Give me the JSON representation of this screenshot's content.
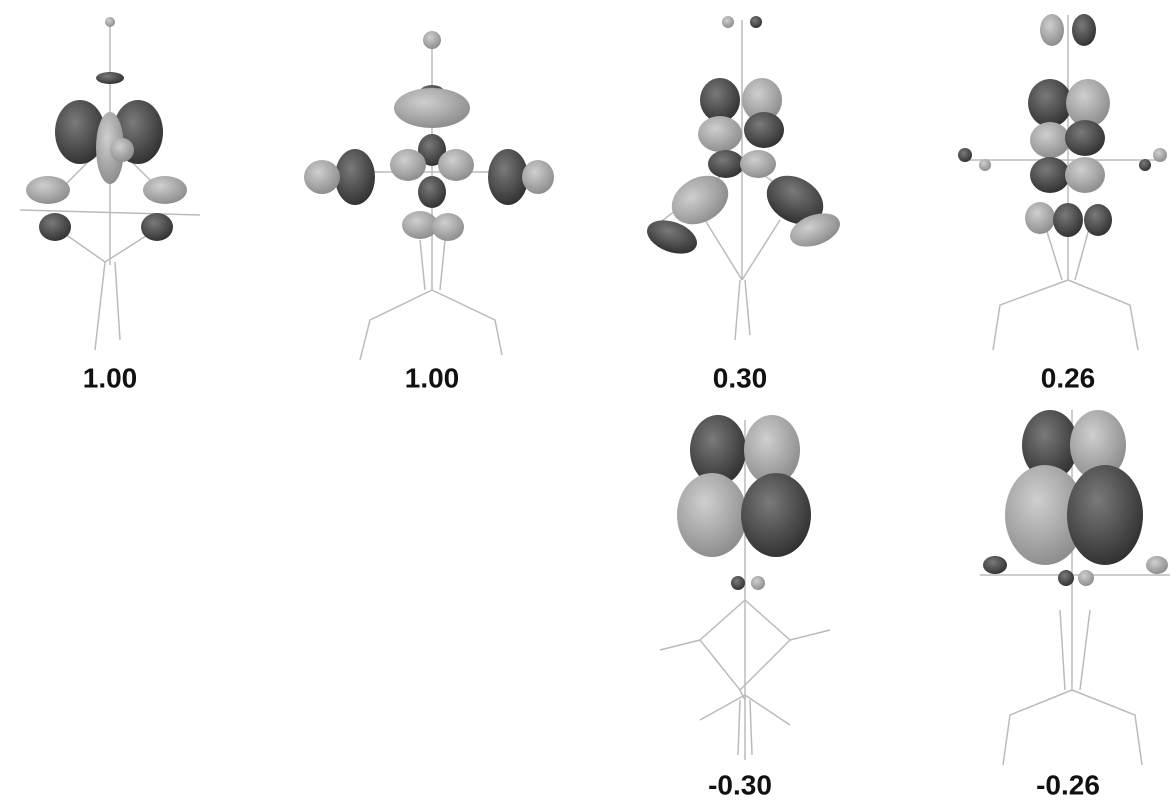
{
  "panels": [
    {
      "label": "1.00"
    },
    {
      "label": "1.00"
    },
    {
      "label": "0.30"
    },
    {
      "label": "0.26"
    },
    {
      "label": "-0.30"
    },
    {
      "label": "-0.26"
    }
  ]
}
